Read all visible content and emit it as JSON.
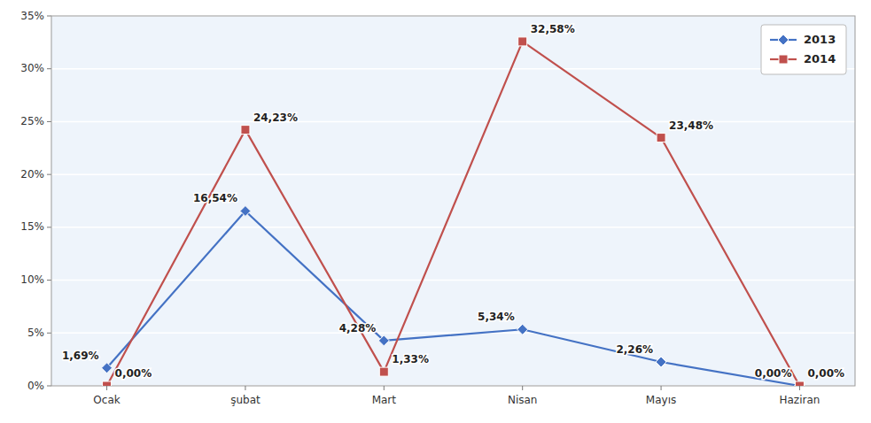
{
  "chart_data": {
    "type": "line",
    "categories": [
      "Ocak",
      "şubat",
      "Mart",
      "Nisan",
      "Mayıs",
      "Haziran"
    ],
    "series": [
      {
        "name": "2013",
        "color": "#4472C4",
        "marker": "diamond",
        "values": [
          1.69,
          16.54,
          4.28,
          5.34,
          2.26,
          0.0
        ],
        "value_labels": [
          "1,69%",
          "16,54%",
          "4,28%",
          "5,34%",
          "2,26%",
          "0,00%"
        ]
      },
      {
        "name": "2014",
        "color": "#C0504D",
        "marker": "square",
        "values": [
          0.0,
          24.23,
          1.33,
          32.58,
          23.48,
          0.0
        ],
        "value_labels": [
          "0,00%",
          "24,23%",
          "1,33%",
          "32,58%",
          "23,48%",
          "0,00%"
        ]
      }
    ],
    "ylim": [
      0,
      35
    ],
    "yticks": [
      {
        "value": 0,
        "label": "0%"
      },
      {
        "value": 5,
        "label": "5%"
      },
      {
        "value": 10,
        "label": "10%"
      },
      {
        "value": 15,
        "label": "15%"
      },
      {
        "value": 20,
        "label": "20%"
      },
      {
        "value": 25,
        "label": "25%"
      },
      {
        "value": 30,
        "label": "30%"
      },
      {
        "value": 35,
        "label": "35%"
      }
    ],
    "grid": true,
    "legend": "upper right",
    "data_labels": true
  }
}
